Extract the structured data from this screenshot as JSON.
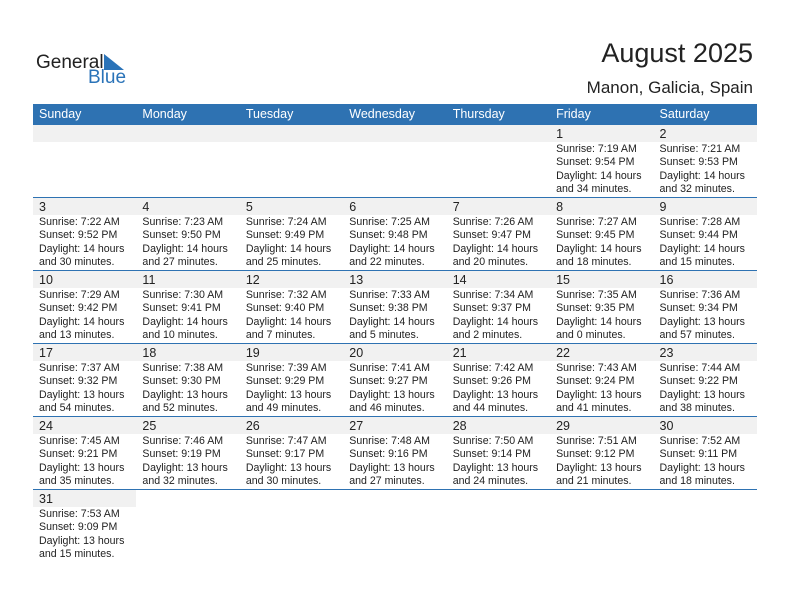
{
  "logo": {
    "line1": "General",
    "line2": "Blue"
  },
  "header": {
    "title": "August 2025",
    "location": "Manon, Galicia, Spain"
  },
  "colors": {
    "accent": "#2e72b2",
    "day_band": "#f1f1f1"
  },
  "weekdays": [
    "Sunday",
    "Monday",
    "Tuesday",
    "Wednesday",
    "Thursday",
    "Friday",
    "Saturday"
  ],
  "weeks": [
    [
      null,
      null,
      null,
      null,
      null,
      {
        "day": "1",
        "sunrise": "Sunrise: 7:19 AM",
        "sunset": "Sunset: 9:54 PM",
        "daylight": "Daylight: 14 hours",
        "minutes": "and 34 minutes."
      },
      {
        "day": "2",
        "sunrise": "Sunrise: 7:21 AM",
        "sunset": "Sunset: 9:53 PM",
        "daylight": "Daylight: 14 hours",
        "minutes": "and 32 minutes."
      }
    ],
    [
      {
        "day": "3",
        "sunrise": "Sunrise: 7:22 AM",
        "sunset": "Sunset: 9:52 PM",
        "daylight": "Daylight: 14 hours",
        "minutes": "and 30 minutes."
      },
      {
        "day": "4",
        "sunrise": "Sunrise: 7:23 AM",
        "sunset": "Sunset: 9:50 PM",
        "daylight": "Daylight: 14 hours",
        "minutes": "and 27 minutes."
      },
      {
        "day": "5",
        "sunrise": "Sunrise: 7:24 AM",
        "sunset": "Sunset: 9:49 PM",
        "daylight": "Daylight: 14 hours",
        "minutes": "and 25 minutes."
      },
      {
        "day": "6",
        "sunrise": "Sunrise: 7:25 AM",
        "sunset": "Sunset: 9:48 PM",
        "daylight": "Daylight: 14 hours",
        "minutes": "and 22 minutes."
      },
      {
        "day": "7",
        "sunrise": "Sunrise: 7:26 AM",
        "sunset": "Sunset: 9:47 PM",
        "daylight": "Daylight: 14 hours",
        "minutes": "and 20 minutes."
      },
      {
        "day": "8",
        "sunrise": "Sunrise: 7:27 AM",
        "sunset": "Sunset: 9:45 PM",
        "daylight": "Daylight: 14 hours",
        "minutes": "and 18 minutes."
      },
      {
        "day": "9",
        "sunrise": "Sunrise: 7:28 AM",
        "sunset": "Sunset: 9:44 PM",
        "daylight": "Daylight: 14 hours",
        "minutes": "and 15 minutes."
      }
    ],
    [
      {
        "day": "10",
        "sunrise": "Sunrise: 7:29 AM",
        "sunset": "Sunset: 9:42 PM",
        "daylight": "Daylight: 14 hours",
        "minutes": "and 13 minutes."
      },
      {
        "day": "11",
        "sunrise": "Sunrise: 7:30 AM",
        "sunset": "Sunset: 9:41 PM",
        "daylight": "Daylight: 14 hours",
        "minutes": "and 10 minutes."
      },
      {
        "day": "12",
        "sunrise": "Sunrise: 7:32 AM",
        "sunset": "Sunset: 9:40 PM",
        "daylight": "Daylight: 14 hours",
        "minutes": "and 7 minutes."
      },
      {
        "day": "13",
        "sunrise": "Sunrise: 7:33 AM",
        "sunset": "Sunset: 9:38 PM",
        "daylight": "Daylight: 14 hours",
        "minutes": "and 5 minutes."
      },
      {
        "day": "14",
        "sunrise": "Sunrise: 7:34 AM",
        "sunset": "Sunset: 9:37 PM",
        "daylight": "Daylight: 14 hours",
        "minutes": "and 2 minutes."
      },
      {
        "day": "15",
        "sunrise": "Sunrise: 7:35 AM",
        "sunset": "Sunset: 9:35 PM",
        "daylight": "Daylight: 14 hours",
        "minutes": "and 0 minutes."
      },
      {
        "day": "16",
        "sunrise": "Sunrise: 7:36 AM",
        "sunset": "Sunset: 9:34 PM",
        "daylight": "Daylight: 13 hours",
        "minutes": "and 57 minutes."
      }
    ],
    [
      {
        "day": "17",
        "sunrise": "Sunrise: 7:37 AM",
        "sunset": "Sunset: 9:32 PM",
        "daylight": "Daylight: 13 hours",
        "minutes": "and 54 minutes."
      },
      {
        "day": "18",
        "sunrise": "Sunrise: 7:38 AM",
        "sunset": "Sunset: 9:30 PM",
        "daylight": "Daylight: 13 hours",
        "minutes": "and 52 minutes."
      },
      {
        "day": "19",
        "sunrise": "Sunrise: 7:39 AM",
        "sunset": "Sunset: 9:29 PM",
        "daylight": "Daylight: 13 hours",
        "minutes": "and 49 minutes."
      },
      {
        "day": "20",
        "sunrise": "Sunrise: 7:41 AM",
        "sunset": "Sunset: 9:27 PM",
        "daylight": "Daylight: 13 hours",
        "minutes": "and 46 minutes."
      },
      {
        "day": "21",
        "sunrise": "Sunrise: 7:42 AM",
        "sunset": "Sunset: 9:26 PM",
        "daylight": "Daylight: 13 hours",
        "minutes": "and 44 minutes."
      },
      {
        "day": "22",
        "sunrise": "Sunrise: 7:43 AM",
        "sunset": "Sunset: 9:24 PM",
        "daylight": "Daylight: 13 hours",
        "minutes": "and 41 minutes."
      },
      {
        "day": "23",
        "sunrise": "Sunrise: 7:44 AM",
        "sunset": "Sunset: 9:22 PM",
        "daylight": "Daylight: 13 hours",
        "minutes": "and 38 minutes."
      }
    ],
    [
      {
        "day": "24",
        "sunrise": "Sunrise: 7:45 AM",
        "sunset": "Sunset: 9:21 PM",
        "daylight": "Daylight: 13 hours",
        "minutes": "and 35 minutes."
      },
      {
        "day": "25",
        "sunrise": "Sunrise: 7:46 AM",
        "sunset": "Sunset: 9:19 PM",
        "daylight": "Daylight: 13 hours",
        "minutes": "and 32 minutes."
      },
      {
        "day": "26",
        "sunrise": "Sunrise: 7:47 AM",
        "sunset": "Sunset: 9:17 PM",
        "daylight": "Daylight: 13 hours",
        "minutes": "and 30 minutes."
      },
      {
        "day": "27",
        "sunrise": "Sunrise: 7:48 AM",
        "sunset": "Sunset: 9:16 PM",
        "daylight": "Daylight: 13 hours",
        "minutes": "and 27 minutes."
      },
      {
        "day": "28",
        "sunrise": "Sunrise: 7:50 AM",
        "sunset": "Sunset: 9:14 PM",
        "daylight": "Daylight: 13 hours",
        "minutes": "and 24 minutes."
      },
      {
        "day": "29",
        "sunrise": "Sunrise: 7:51 AM",
        "sunset": "Sunset: 9:12 PM",
        "daylight": "Daylight: 13 hours",
        "minutes": "and 21 minutes."
      },
      {
        "day": "30",
        "sunrise": "Sunrise: 7:52 AM",
        "sunset": "Sunset: 9:11 PM",
        "daylight": "Daylight: 13 hours",
        "minutes": "and 18 minutes."
      }
    ],
    [
      {
        "day": "31",
        "sunrise": "Sunrise: 7:53 AM",
        "sunset": "Sunset: 9:09 PM",
        "daylight": "Daylight: 13 hours",
        "minutes": "and 15 minutes."
      }
    ]
  ]
}
